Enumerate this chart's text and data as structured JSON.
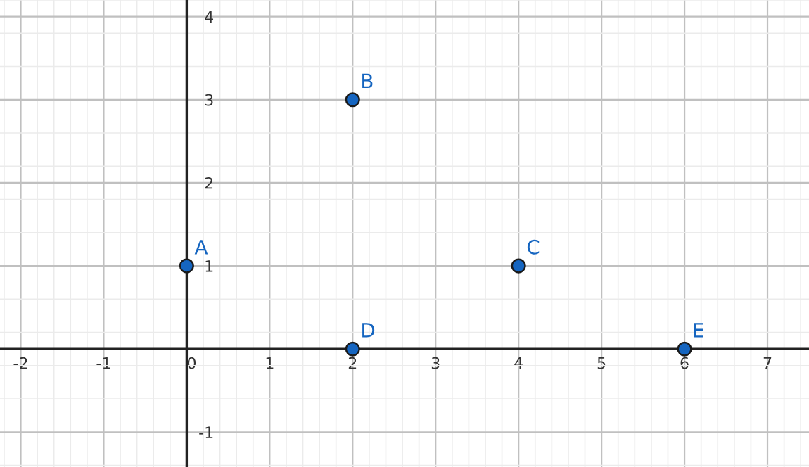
{
  "chart_data": {
    "type": "scatter",
    "x": [
      0,
      2,
      4,
      2,
      6
    ],
    "values": [
      1,
      3,
      1,
      0,
      0
    ],
    "color": "#1565c0",
    "marker": "circle",
    "annotations": [
      {
        "text": "A",
        "x": 0,
        "y": 1
      },
      {
        "text": "B",
        "x": 2,
        "y": 3
      },
      {
        "text": "C",
        "x": 4,
        "y": 1
      },
      {
        "text": "D",
        "x": 2,
        "y": 0
      },
      {
        "text": "E",
        "x": 6,
        "y": 0
      }
    ],
    "xlim": [
      -2.25,
      7.5
    ],
    "ylim": [
      -1.42,
      4.2
    ],
    "xticks": [
      -2,
      -1,
      0,
      1,
      2,
      3,
      4,
      5,
      6,
      7
    ],
    "yticks": [
      -1,
      1,
      2,
      3,
      4
    ],
    "grid": true
  }
}
